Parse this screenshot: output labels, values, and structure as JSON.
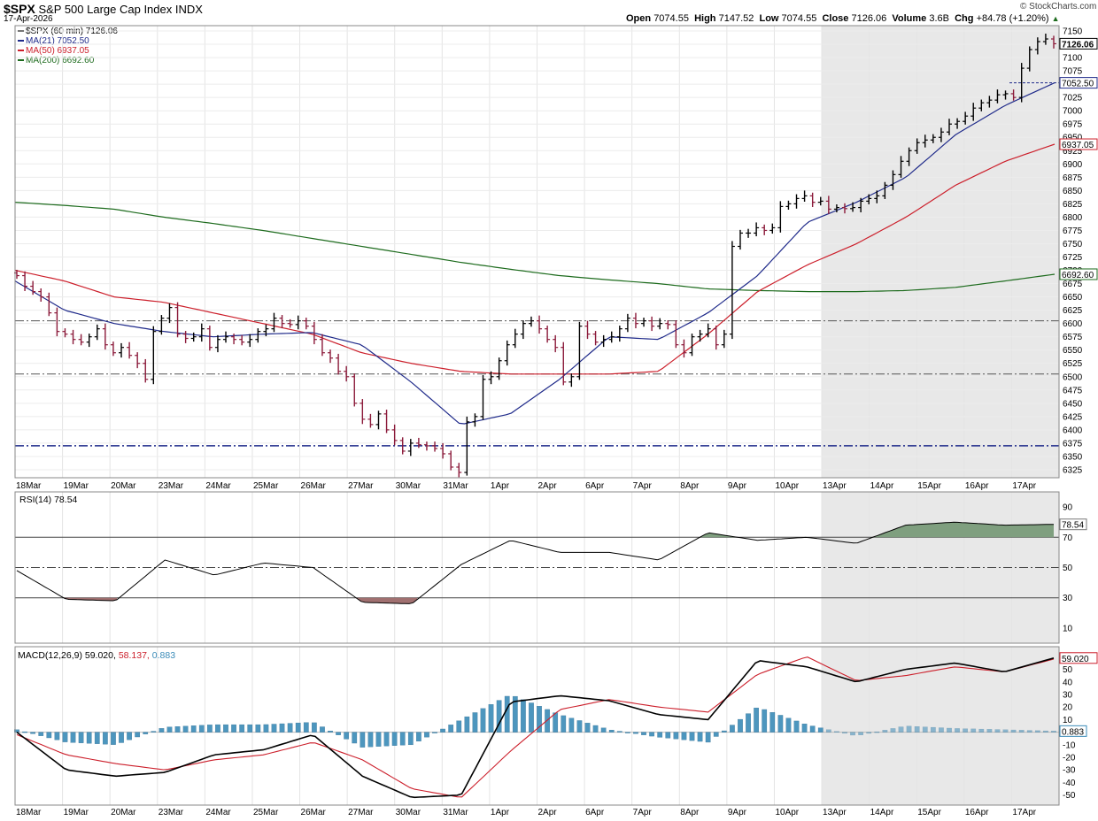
{
  "header": {
    "symbol": "$SPX",
    "name": "S&P 500 Large Cap Index",
    "exchange": "INDX",
    "date": "17-Apr-2026",
    "brand": "© StockCharts.com",
    "ohlc": [
      {
        "label": "Open",
        "value": "7074.55"
      },
      {
        "label": "High",
        "value": "7147.52"
      },
      {
        "label": "Low",
        "value": "7074.55"
      },
      {
        "label": "Close",
        "value": "7126.06"
      },
      {
        "label": "Volume",
        "value": "3.6B"
      },
      {
        "label": "Chg",
        "value": "+84.78 (+1.20%)"
      }
    ]
  },
  "legend": [
    {
      "id": "main",
      "label": "$SPX (60 min) 7126.06",
      "color": "#000000"
    },
    {
      "id": "ma21",
      "label": "MA(21) 7052.50",
      "color": "#1f2a8a"
    },
    {
      "id": "ma50",
      "label": "MA(50) 6937.05",
      "color": "#cc1f2b"
    },
    {
      "id": "ma200",
      "label": "MA(200) 6692.60",
      "color": "#1d6b1d"
    }
  ],
  "colors": {
    "up": "#000000",
    "down": "#8b1a3a",
    "ma21": "#1f2a8a",
    "ma50": "#cc1f2b",
    "ma200": "#1d6b1d",
    "shade": "#e8e8e8",
    "rsi_fill_high": "#7f9f7f",
    "rsi_fill_low": "#a07070",
    "hist": "#3a8bb8",
    "macd_line": "#000000",
    "signal_line": "#cc1f2b",
    "hline": "#1f2a8a"
  },
  "chart_data": [
    {
      "type": "candlestick",
      "title": "$SPX (60 min)",
      "x_dates": [
        "18Mar",
        "19Mar",
        "20Mar",
        "23Mar",
        "24Mar",
        "25Mar",
        "26Mar",
        "27Mar",
        "30Mar",
        "31Mar",
        "1Apr",
        "2Apr",
        "6Apr",
        "7Apr",
        "8Apr",
        "9Apr",
        "10Apr",
        "13Apr",
        "14Apr",
        "15Apr",
        "16Apr",
        "17Apr"
      ],
      "y_ticks": [
        6325,
        6350,
        6375,
        6400,
        6425,
        6450,
        6475,
        6500,
        6525,
        6550,
        6575,
        6600,
        6625,
        6650,
        6675,
        6700,
        6725,
        6750,
        6775,
        6800,
        6825,
        6850,
        6875,
        6900,
        6925,
        6950,
        6975,
        7000,
        7025,
        7050,
        7075,
        7100,
        7125,
        7150
      ],
      "ylim": [
        6310,
        7160
      ],
      "horizontal_lines": [
        6605,
        6505,
        6370
      ],
      "shaded_from": "13Apr",
      "value_labels": [
        {
          "value": 7126.06,
          "text": "7126.06",
          "series": "close"
        },
        {
          "value": 7052.5,
          "text": "7052.50",
          "series": "ma21"
        },
        {
          "value": 6937.05,
          "text": "6937.05",
          "series": "ma50"
        },
        {
          "value": 6692.6,
          "text": "6692.60",
          "series": "ma200"
        }
      ],
      "closes": [
        6690,
        6670,
        6660,
        6650,
        6620,
        6585,
        6580,
        6570,
        6565,
        6575,
        6590,
        6560,
        6545,
        6555,
        6540,
        6525,
        6495,
        6585,
        6610,
        6630,
        6580,
        6572,
        6575,
        6590,
        6555,
        6570,
        6575,
        6570,
        6565,
        6570,
        6585,
        6590,
        6610,
        6600,
        6598,
        6605,
        6595,
        6570,
        6545,
        6535,
        6510,
        6500,
        6450,
        6420,
        6410,
        6430,
        6400,
        6380,
        6360,
        6375,
        6372,
        6370,
        6365,
        6355,
        6330,
        6320,
        6415,
        6425,
        6495,
        6500,
        6530,
        6560,
        6580,
        6600,
        6605,
        6590,
        6570,
        6555,
        6490,
        6500,
        6595,
        6580,
        6565,
        6570,
        6575,
        6590,
        6610,
        6600,
        6605,
        6595,
        6600,
        6598,
        6560,
        6545,
        6575,
        6580,
        6590,
        6560,
        6580,
        6745,
        6770,
        6770,
        6780,
        6775,
        6780,
        6820,
        6825,
        6835,
        6840,
        6828,
        6830,
        6815,
        6818,
        6816,
        6818,
        6830,
        6835,
        6840,
        6860,
        6880,
        6905,
        6925,
        6940,
        6945,
        6950,
        6960,
        6975,
        6980,
        6990,
        7005,
        7015,
        7020,
        7030,
        7032,
        7025,
        7080,
        7115,
        7130,
        7135,
        7126
      ],
      "series": [
        {
          "name": "MA(21)",
          "values": [
            6680,
            6625,
            6600,
            6585,
            6575,
            6580,
            6583,
            6560,
            6490,
            6410,
            6430,
            6495,
            6575,
            6570,
            6620,
            6690,
            6790,
            6828,
            6875,
            6955,
            7010,
            7052.5
          ]
        },
        {
          "name": "MA(50)",
          "values": [
            6700,
            6680,
            6650,
            6640,
            6620,
            6600,
            6580,
            6545,
            6525,
            6510,
            6505,
            6505,
            6505,
            6510,
            6580,
            6660,
            6710,
            6750,
            6800,
            6860,
            6905,
            6937.05
          ]
        },
        {
          "name": "MA(200)",
          "values": [
            6828,
            6822,
            6815,
            6800,
            6788,
            6775,
            6760,
            6745,
            6730,
            6715,
            6702,
            6690,
            6682,
            6675,
            6665,
            6662,
            6660,
            6660,
            6662,
            6668,
            6680,
            6692.6
          ]
        }
      ]
    },
    {
      "type": "line",
      "title": "RSI(14) 78.54",
      "y_ticks": [
        10,
        30,
        50,
        70,
        90
      ],
      "ylim": [
        0,
        100
      ],
      "levels": [
        70,
        50,
        30
      ],
      "value_label": "78.54",
      "x": [
        "18Mar",
        "19Mar",
        "20Mar",
        "23Mar",
        "24Mar",
        "25Mar",
        "26Mar",
        "27Mar",
        "30Mar",
        "31Mar",
        "1Apr",
        "2Apr",
        "6Apr",
        "7Apr",
        "8Apr",
        "9Apr",
        "10Apr",
        "13Apr",
        "14Apr",
        "15Apr",
        "16Apr",
        "17Apr"
      ],
      "values": [
        48,
        29,
        28,
        55,
        45,
        53,
        50,
        27,
        26,
        52,
        68,
        60,
        60,
        55,
        73,
        68,
        70,
        66,
        78,
        80,
        78,
        78.54
      ]
    },
    {
      "type": "bar",
      "title": "MACD(12,26,9) 59.020, 58.137, 0.883",
      "y_ticks": [
        -50,
        -40,
        -30,
        -20,
        -10,
        0,
        10,
        20,
        30,
        40,
        50,
        60
      ],
      "ylim": [
        -58,
        68
      ],
      "value_label": "59.020",
      "hist_label": "0.883",
      "x": [
        "18Mar",
        "19Mar",
        "20Mar",
        "23Mar",
        "24Mar",
        "25Mar",
        "26Mar",
        "27Mar",
        "30Mar",
        "31Mar",
        "1Apr",
        "2Apr",
        "6Apr",
        "7Apr",
        "8Apr",
        "9Apr",
        "10Apr",
        "13Apr",
        "14Apr",
        "15Apr",
        "16Apr",
        "17Apr"
      ],
      "series": [
        {
          "name": "MACD",
          "values": [
            0,
            -30,
            -35,
            -32,
            -18,
            -14,
            -2,
            -35,
            -52,
            -50,
            24,
            29,
            25,
            14,
            10,
            57,
            52,
            40,
            50,
            55,
            48,
            59.02
          ]
        },
        {
          "name": "Signal",
          "values": [
            -2,
            -18,
            -25,
            -30,
            -22,
            -18,
            -8,
            -22,
            -45,
            -52,
            -15,
            18,
            26,
            20,
            16,
            46,
            60,
            41,
            45,
            52,
            48,
            58.137
          ]
        },
        {
          "name": "Histogram",
          "values": [
            2,
            -8,
            -10,
            4,
            6,
            6,
            8,
            -12,
            -10,
            10,
            30,
            14,
            2,
            -4,
            -8,
            20,
            6,
            -3,
            5,
            3,
            2,
            0.883
          ]
        }
      ]
    }
  ]
}
